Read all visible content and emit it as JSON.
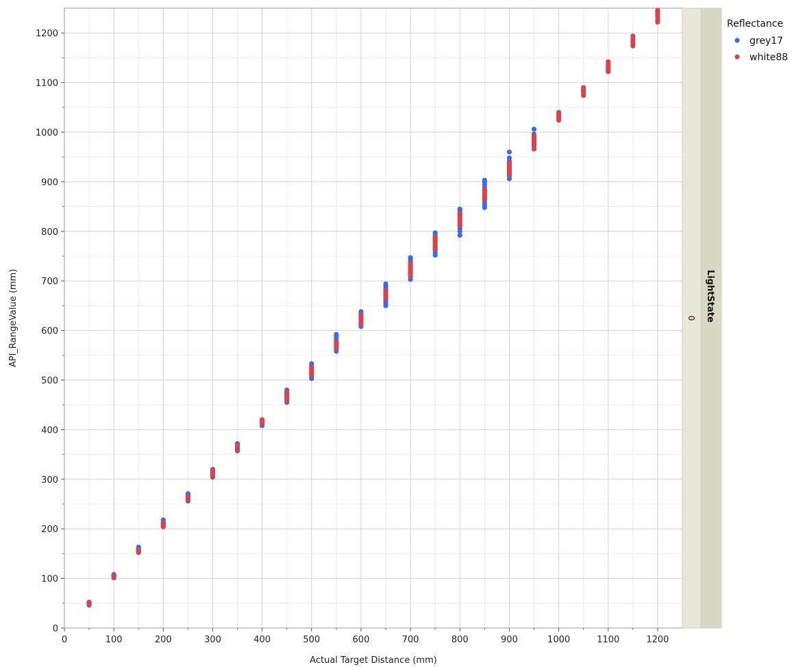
{
  "chart_data": {
    "type": "scatter",
    "title": "",
    "xlabel": "Actual Target Distance (mm)",
    "ylabel": "API_RangeValue (mm)",
    "xlim": [
      0,
      1250
    ],
    "ylim": [
      0,
      1250
    ],
    "x_ticks": [
      "0",
      "100",
      "200",
      "300",
      "400",
      "500",
      "600",
      "700",
      "800",
      "900",
      "1000",
      "1100",
      "1200"
    ],
    "y_ticks": [
      "0",
      "100",
      "200",
      "300",
      "400",
      "500",
      "600",
      "700",
      "800",
      "900",
      "1000",
      "1100",
      "1200"
    ],
    "grid": true,
    "legend": {
      "title": "Reflectance",
      "position": "top-right"
    },
    "panel": {
      "label": "LightState",
      "value": "0"
    },
    "series": [
      {
        "name": "grey17",
        "color": "#4169e1",
        "points": [
          [
            50,
            46
          ],
          [
            50,
            48
          ],
          [
            50,
            50
          ],
          [
            50,
            52
          ],
          [
            100,
            101
          ],
          [
            100,
            104
          ],
          [
            100,
            106
          ],
          [
            100,
            108
          ],
          [
            150,
            152
          ],
          [
            150,
            156
          ],
          [
            150,
            160
          ],
          [
            150,
            163
          ],
          [
            200,
            206
          ],
          [
            200,
            210
          ],
          [
            200,
            214
          ],
          [
            200,
            218
          ],
          [
            250,
            256
          ],
          [
            250,
            260
          ],
          [
            250,
            264
          ],
          [
            250,
            268
          ],
          [
            250,
            271
          ],
          [
            300,
            304
          ],
          [
            300,
            308
          ],
          [
            300,
            312
          ],
          [
            300,
            316
          ],
          [
            300,
            320
          ],
          [
            350,
            357
          ],
          [
            350,
            361
          ],
          [
            350,
            365
          ],
          [
            350,
            369
          ],
          [
            350,
            372
          ],
          [
            400,
            408
          ],
          [
            400,
            412
          ],
          [
            400,
            416
          ],
          [
            400,
            420
          ],
          [
            450,
            455
          ],
          [
            450,
            460
          ],
          [
            450,
            465
          ],
          [
            450,
            470
          ],
          [
            450,
            475
          ],
          [
            450,
            480
          ],
          [
            500,
            503
          ],
          [
            500,
            508
          ],
          [
            500,
            513
          ],
          [
            500,
            518
          ],
          [
            500,
            523
          ],
          [
            500,
            528
          ],
          [
            500,
            533
          ],
          [
            550,
            558
          ],
          [
            550,
            563
          ],
          [
            550,
            568
          ],
          [
            550,
            573
          ],
          [
            550,
            578
          ],
          [
            550,
            583
          ],
          [
            550,
            588
          ],
          [
            550,
            592
          ],
          [
            600,
            608
          ],
          [
            600,
            613
          ],
          [
            600,
            618
          ],
          [
            600,
            623
          ],
          [
            600,
            628
          ],
          [
            600,
            633
          ],
          [
            600,
            638
          ],
          [
            650,
            650
          ],
          [
            650,
            655
          ],
          [
            650,
            660
          ],
          [
            650,
            665
          ],
          [
            650,
            670
          ],
          [
            650,
            675
          ],
          [
            650,
            680
          ],
          [
            650,
            685
          ],
          [
            650,
            690
          ],
          [
            650,
            694
          ],
          [
            700,
            703
          ],
          [
            700,
            708
          ],
          [
            700,
            713
          ],
          [
            700,
            718
          ],
          [
            700,
            723
          ],
          [
            700,
            728
          ],
          [
            700,
            733
          ],
          [
            700,
            738
          ],
          [
            700,
            743
          ],
          [
            700,
            747
          ],
          [
            750,
            752
          ],
          [
            750,
            757
          ],
          [
            750,
            762
          ],
          [
            750,
            767
          ],
          [
            750,
            772
          ],
          [
            750,
            777
          ],
          [
            750,
            782
          ],
          [
            750,
            787
          ],
          [
            750,
            792
          ],
          [
            750,
            797
          ],
          [
            800,
            792
          ],
          [
            800,
            800
          ],
          [
            800,
            806
          ],
          [
            800,
            812
          ],
          [
            800,
            818
          ],
          [
            800,
            824
          ],
          [
            800,
            830
          ],
          [
            800,
            836
          ],
          [
            800,
            841
          ],
          [
            800,
            845
          ],
          [
            850,
            848
          ],
          [
            850,
            853
          ],
          [
            850,
            858
          ],
          [
            850,
            864
          ],
          [
            850,
            870
          ],
          [
            850,
            876
          ],
          [
            850,
            882
          ],
          [
            850,
            888
          ],
          [
            850,
            894
          ],
          [
            850,
            899
          ],
          [
            850,
            903
          ],
          [
            900,
            906
          ],
          [
            900,
            912
          ],
          [
            900,
            918
          ],
          [
            900,
            924
          ],
          [
            900,
            930
          ],
          [
            900,
            936
          ],
          [
            900,
            942
          ],
          [
            900,
            948
          ],
          [
            900,
            960
          ],
          [
            950,
            966
          ],
          [
            950,
            972
          ],
          [
            950,
            978
          ],
          [
            950,
            984
          ],
          [
            950,
            990
          ],
          [
            950,
            996
          ],
          [
            950,
            1006
          ]
        ]
      },
      {
        "name": "white88",
        "color": "#d9434f",
        "points": [
          [
            50,
            48
          ],
          [
            50,
            50
          ],
          [
            50,
            52
          ],
          [
            100,
            101
          ],
          [
            100,
            103
          ],
          [
            100,
            105
          ],
          [
            150,
            153
          ],
          [
            150,
            155
          ],
          [
            150,
            157
          ],
          [
            200,
            204
          ],
          [
            200,
            207
          ],
          [
            200,
            210
          ],
          [
            200,
            213
          ],
          [
            250,
            259
          ],
          [
            250,
            262
          ],
          [
            250,
            265
          ],
          [
            300,
            306
          ],
          [
            300,
            310
          ],
          [
            300,
            314
          ],
          [
            300,
            318
          ],
          [
            350,
            360
          ],
          [
            350,
            364
          ],
          [
            350,
            368
          ],
          [
            400,
            412
          ],
          [
            400,
            416
          ],
          [
            400,
            420
          ],
          [
            450,
            460
          ],
          [
            450,
            464
          ],
          [
            450,
            468
          ],
          [
            450,
            472
          ],
          [
            450,
            476
          ],
          [
            500,
            510
          ],
          [
            500,
            514
          ],
          [
            500,
            518
          ],
          [
            500,
            522
          ],
          [
            500,
            526
          ],
          [
            550,
            564
          ],
          [
            550,
            568
          ],
          [
            550,
            572
          ],
          [
            550,
            576
          ],
          [
            600,
            614
          ],
          [
            600,
            618
          ],
          [
            600,
            622
          ],
          [
            600,
            626
          ],
          [
            600,
            630
          ],
          [
            650,
            664
          ],
          [
            650,
            668
          ],
          [
            650,
            672
          ],
          [
            650,
            676
          ],
          [
            650,
            680
          ],
          [
            700,
            710
          ],
          [
            700,
            715
          ],
          [
            700,
            720
          ],
          [
            700,
            725
          ],
          [
            700,
            730
          ],
          [
            700,
            735
          ],
          [
            750,
            764
          ],
          [
            750,
            768
          ],
          [
            750,
            772
          ],
          [
            750,
            776
          ],
          [
            750,
            780
          ],
          [
            750,
            784
          ],
          [
            750,
            788
          ],
          [
            800,
            812
          ],
          [
            800,
            816
          ],
          [
            800,
            820
          ],
          [
            800,
            824
          ],
          [
            800,
            828
          ],
          [
            800,
            832
          ],
          [
            800,
            836
          ],
          [
            850,
            864
          ],
          [
            850,
            868
          ],
          [
            850,
            872
          ],
          [
            850,
            876
          ],
          [
            850,
            880
          ],
          [
            850,
            884
          ],
          [
            900,
            914
          ],
          [
            900,
            918
          ],
          [
            900,
            922
          ],
          [
            900,
            926
          ],
          [
            900,
            930
          ],
          [
            900,
            934
          ],
          [
            900,
            938
          ],
          [
            950,
            966
          ],
          [
            950,
            972
          ],
          [
            950,
            976
          ],
          [
            950,
            980
          ],
          [
            950,
            984
          ],
          [
            950,
            988
          ],
          [
            950,
            992
          ],
          [
            1000,
            1024
          ],
          [
            1000,
            1028
          ],
          [
            1000,
            1032
          ],
          [
            1000,
            1036
          ],
          [
            1000,
            1040
          ],
          [
            1050,
            1074
          ],
          [
            1050,
            1078
          ],
          [
            1050,
            1082
          ],
          [
            1050,
            1086
          ],
          [
            1050,
            1090
          ],
          [
            1100,
            1122
          ],
          [
            1100,
            1126
          ],
          [
            1100,
            1130
          ],
          [
            1100,
            1134
          ],
          [
            1100,
            1138
          ],
          [
            1100,
            1142
          ],
          [
            1150,
            1174
          ],
          [
            1150,
            1178
          ],
          [
            1150,
            1182
          ],
          [
            1150,
            1186
          ],
          [
            1150,
            1190
          ],
          [
            1150,
            1194
          ],
          [
            1200,
            1222
          ],
          [
            1200,
            1226
          ],
          [
            1200,
            1230
          ],
          [
            1200,
            1234
          ],
          [
            1200,
            1238
          ],
          [
            1200,
            1242
          ],
          [
            1200,
            1246
          ]
        ]
      }
    ]
  }
}
